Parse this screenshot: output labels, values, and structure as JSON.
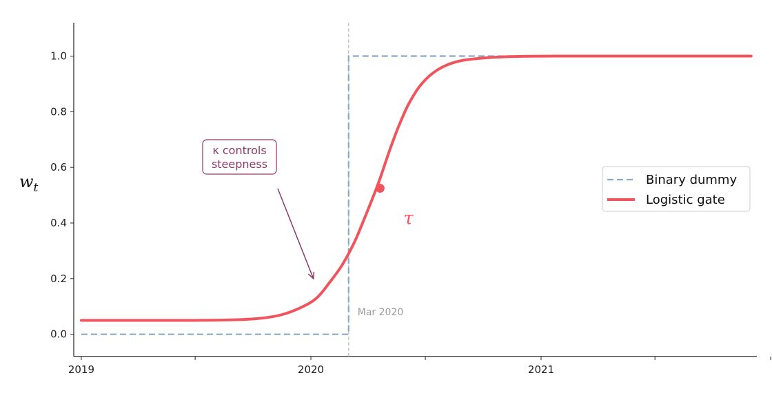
{
  "chart_data": {
    "type": "line",
    "title": "",
    "xlabel": "",
    "ylabel": "w_t",
    "x_range": [
      "2018-12-20",
      "2021-12-10"
    ],
    "ylim": [
      -0.08,
      1.12
    ],
    "x_ticks": [
      {
        "date": "2019-01-01",
        "label": "2019"
      },
      {
        "date": "2019-07-01",
        "label": ""
      },
      {
        "date": "2020-01-01",
        "label": "2020"
      },
      {
        "date": "2020-07-01",
        "label": ""
      },
      {
        "date": "2021-01-01",
        "label": "2021"
      },
      {
        "date": "2021-07-01",
        "label": ""
      },
      {
        "date": "2022-01-01",
        "label": ""
      }
    ],
    "y_ticks": [
      {
        "value": 0.0,
        "label": "0.0"
      },
      {
        "value": 0.2,
        "label": "0.2"
      },
      {
        "value": 0.4,
        "label": "0.4"
      },
      {
        "value": 0.6,
        "label": "0.6"
      },
      {
        "value": 0.8,
        "label": "0.8"
      },
      {
        "value": 1.0,
        "label": "1.0"
      }
    ],
    "grid": false,
    "legend_position": "right",
    "series": [
      {
        "name": "Binary dummy",
        "style": "dashed",
        "color": "#8ba8c4",
        "points": [
          {
            "x": "2019-01-01",
            "y": 0
          },
          {
            "x": "2020-03-01",
            "y": 0
          },
          {
            "x": "2020-03-01",
            "y": 1
          },
          {
            "x": "2021-12-01",
            "y": 1
          }
        ]
      },
      {
        "name": "Logistic gate",
        "style": "solid",
        "color": "#f0555e",
        "points": [
          {
            "x": "2019-01-01",
            "y": 0.05
          },
          {
            "x": "2019-04-01",
            "y": 0.05
          },
          {
            "x": "2019-07-01",
            "y": 0.05
          },
          {
            "x": "2019-09-01",
            "y": 0.052
          },
          {
            "x": "2019-10-15",
            "y": 0.058
          },
          {
            "x": "2019-11-15",
            "y": 0.07
          },
          {
            "x": "2019-12-15",
            "y": 0.095
          },
          {
            "x": "2020-01-10",
            "y": 0.13
          },
          {
            "x": "2020-02-01",
            "y": 0.19
          },
          {
            "x": "2020-02-20",
            "y": 0.25
          },
          {
            "x": "2020-03-10",
            "y": 0.33
          },
          {
            "x": "2020-03-25",
            "y": 0.41
          },
          {
            "x": "2020-04-10",
            "y": 0.5
          },
          {
            "x": "2020-04-20",
            "y": 0.56
          },
          {
            "x": "2020-05-05",
            "y": 0.66
          },
          {
            "x": "2020-05-20",
            "y": 0.75
          },
          {
            "x": "2020-06-05",
            "y": 0.83
          },
          {
            "x": "2020-06-25",
            "y": 0.9
          },
          {
            "x": "2020-07-20",
            "y": 0.95
          },
          {
            "x": "2020-08-20",
            "y": 0.98
          },
          {
            "x": "2020-10-01",
            "y": 0.993
          },
          {
            "x": "2020-12-01",
            "y": 0.999
          },
          {
            "x": "2021-03-01",
            "y": 1.0
          },
          {
            "x": "2021-12-01",
            "y": 1.0
          }
        ]
      }
    ],
    "markers": [
      {
        "x": "2020-04-20",
        "y": 0.525,
        "color": "#f0555e",
        "label": "τ"
      }
    ],
    "vertical_line": {
      "x": "2020-03-01",
      "label": "Mar 2020",
      "color": "#b8c2cc"
    },
    "annotations": [
      {
        "text_lines": [
          "κ controls",
          "steepness"
        ],
        "arrow_to": {
          "x": "2020-01-05",
          "y": 0.2
        },
        "color": "#8b3a62"
      }
    ]
  }
}
